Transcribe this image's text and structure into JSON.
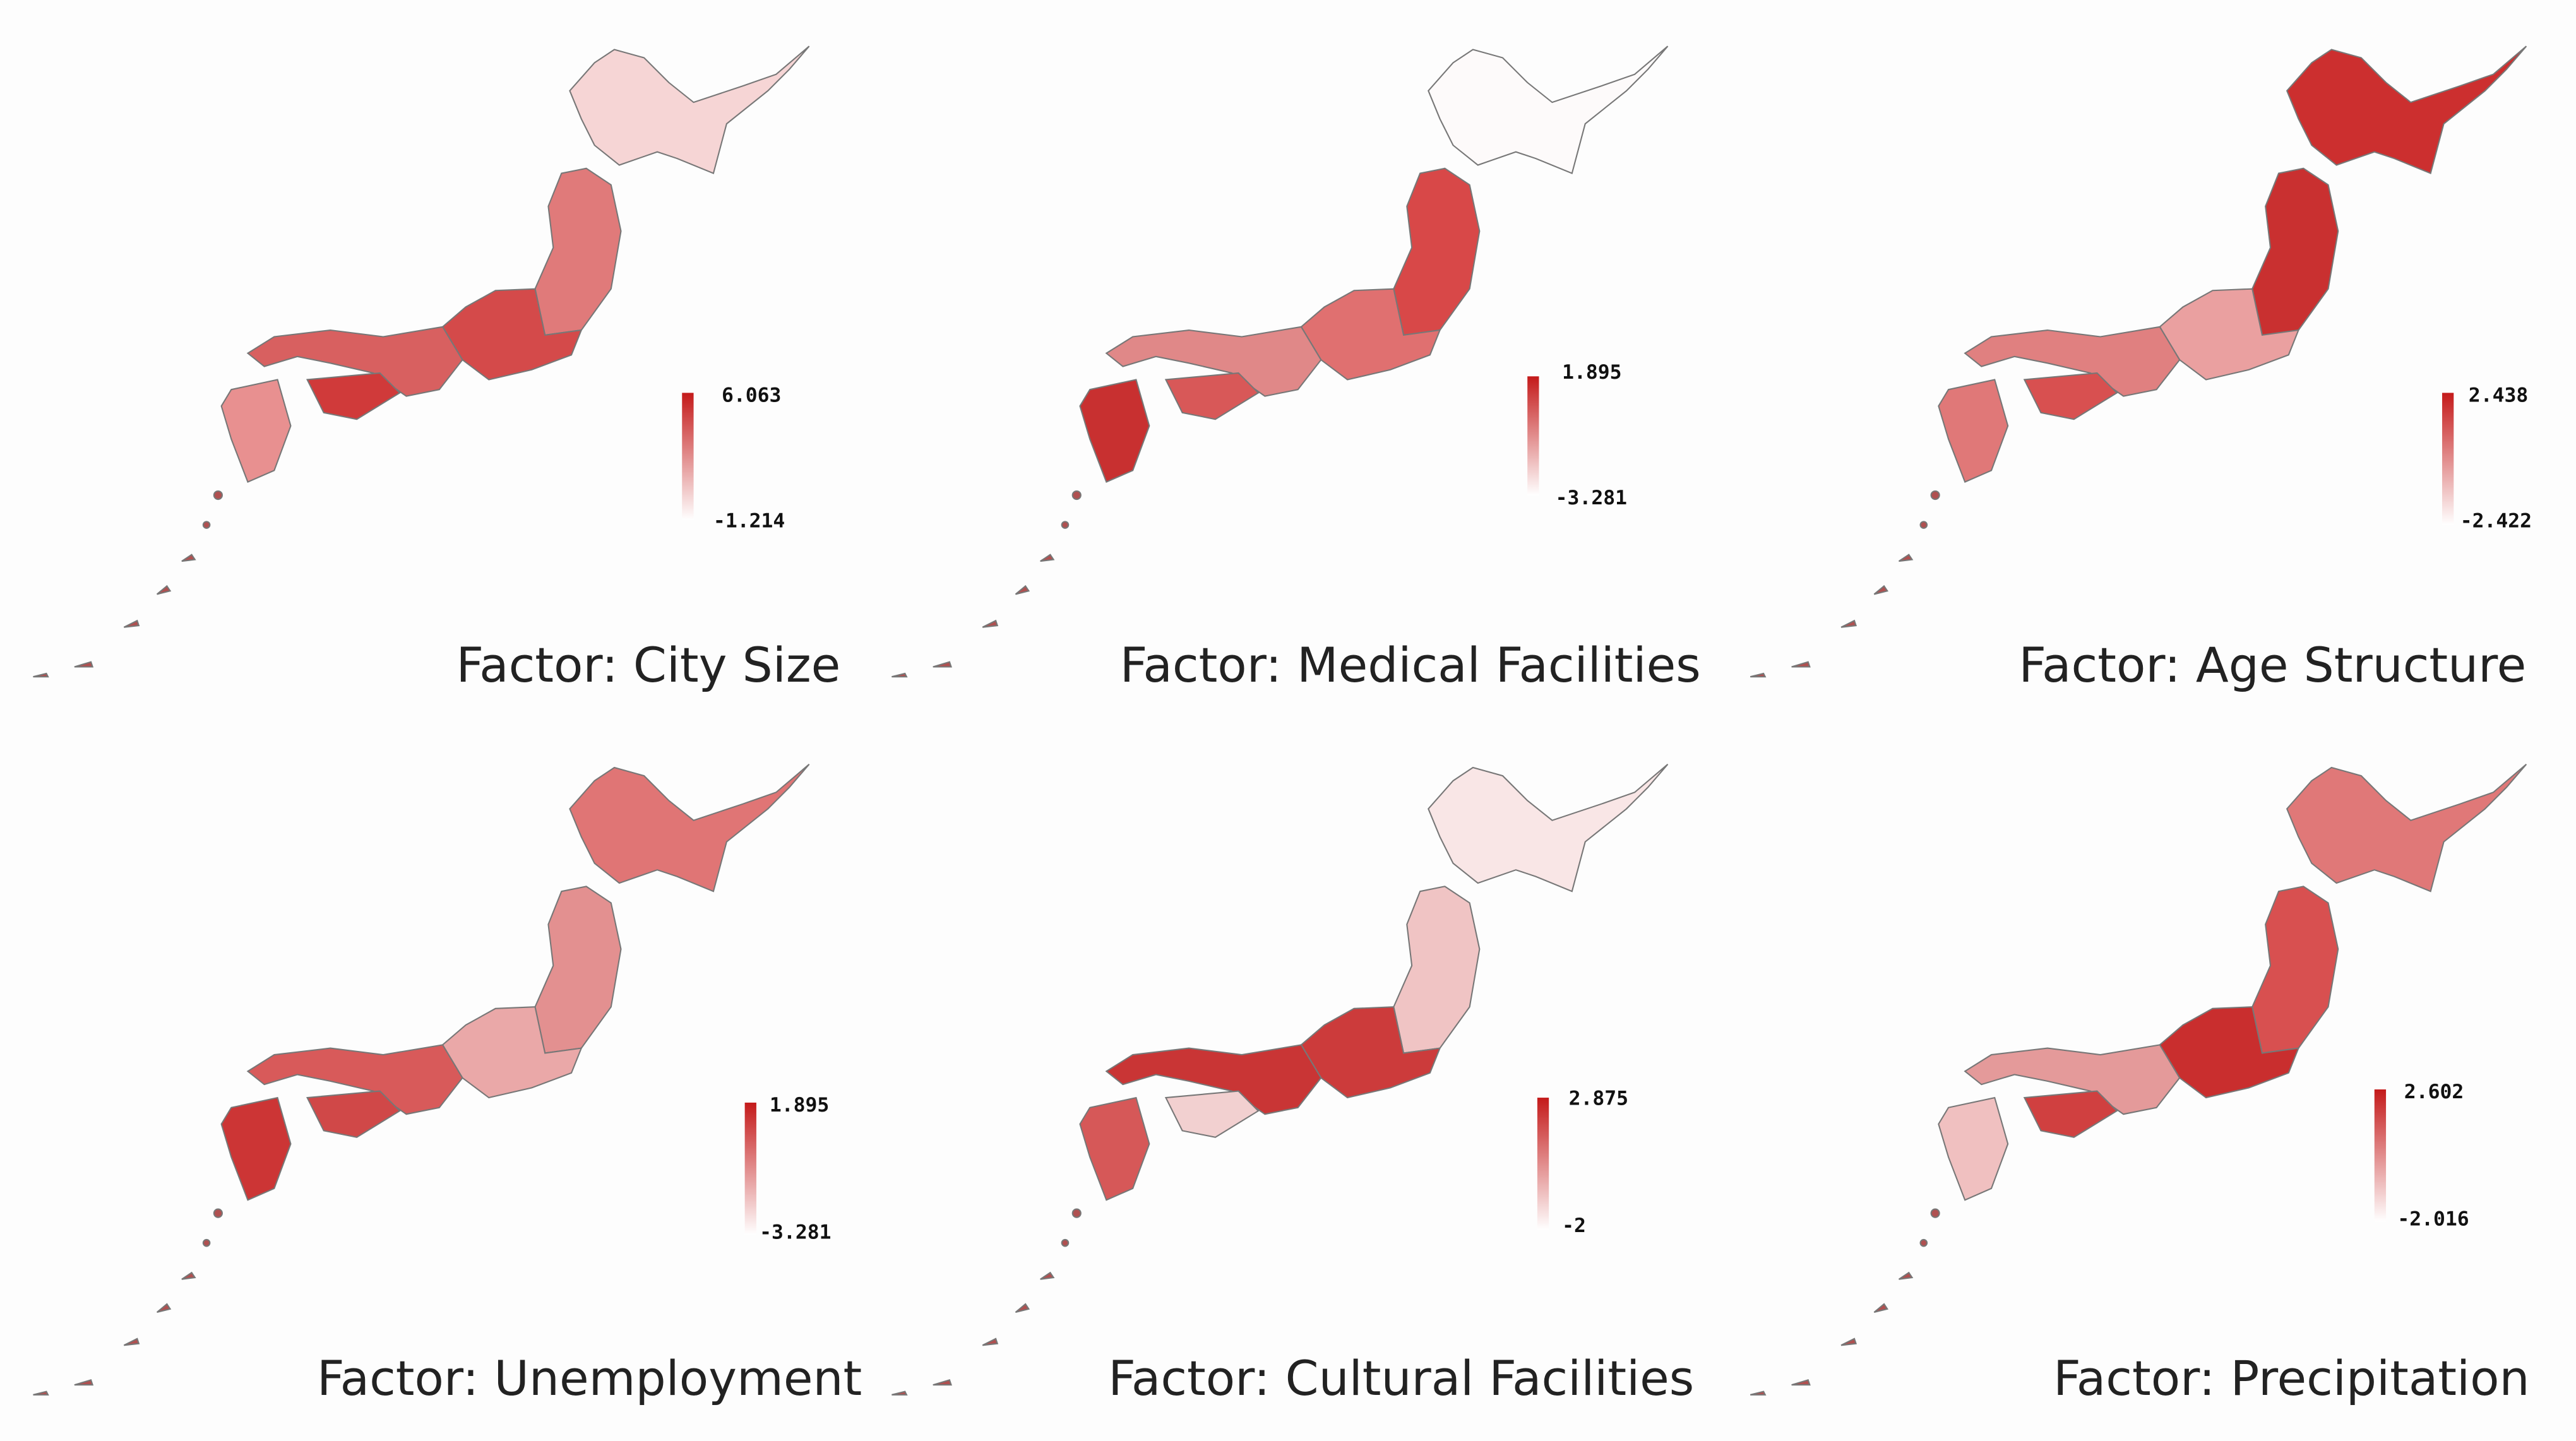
{
  "panels": [
    {
      "title": "Factor: City Size",
      "legend": {
        "max": "6.063",
        "min": "-1.214"
      }
    },
    {
      "title": "Factor: Medical Facilities",
      "legend": {
        "max": "1.895",
        "min": "-3.281"
      }
    },
    {
      "title": "Factor: Age Structure",
      "legend": {
        "max": "2.438",
        "min": "-2.422"
      }
    },
    {
      "title": "Factor: Unemployment",
      "legend": {
        "max": "1.895",
        "min": "-3.281"
      }
    },
    {
      "title": "Factor: Cultural Facilities",
      "legend": {
        "max": "2.875",
        "min": "-2"
      }
    },
    {
      "title": "Factor: Precipitation",
      "legend": {
        "max": "2.602",
        "min": "-2.016"
      }
    }
  ]
}
